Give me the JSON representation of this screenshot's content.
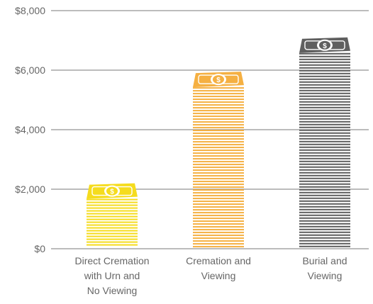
{
  "chart_data": {
    "type": "bar",
    "categories": [
      [
        "Direct Cremation",
        "with Urn and",
        "No Viewing"
      ],
      [
        "Cremation and",
        "Viewing"
      ],
      [
        "Burial and",
        "Viewing"
      ]
    ],
    "values": [
      2200,
      5950,
      7100
    ],
    "colors": [
      "#f5dc1e",
      "#f5b042",
      "#5f5f5f"
    ],
    "currency_icon": "dollar-bill-icon",
    "yticks": [
      "$0",
      "$2,000",
      "$4,000",
      "$6,000",
      "$8,000"
    ],
    "ytick_values": [
      0,
      2000,
      4000,
      6000,
      8000
    ],
    "ylim": [
      0,
      8000
    ],
    "grid": true,
    "grid_color": "#7a7a7a"
  }
}
